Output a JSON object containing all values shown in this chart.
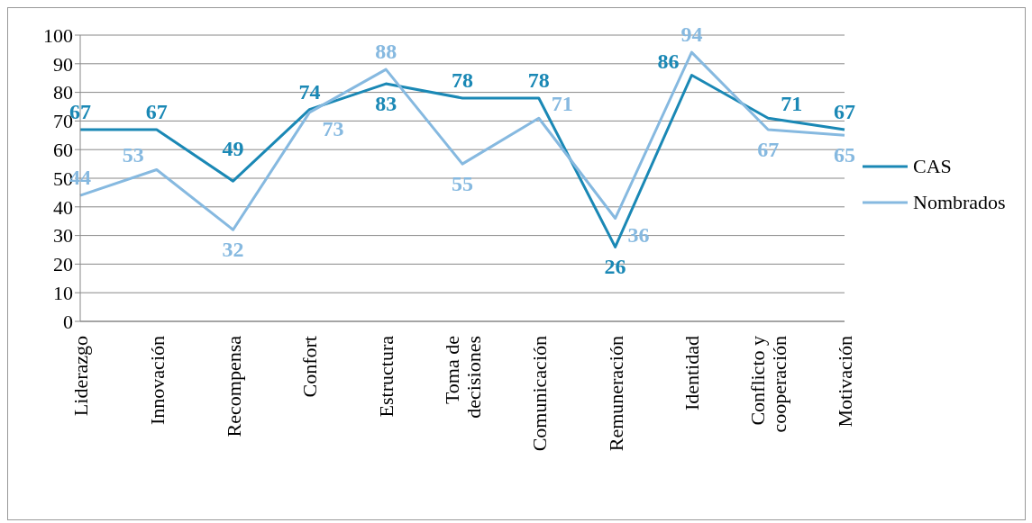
{
  "chart_data": {
    "type": "line",
    "categories": [
      "Liderazgo",
      "Innovación",
      "Recompensa",
      "Confort",
      "Estructura",
      "Toma de decisiones",
      "Comunicación",
      "Remuneración",
      "Identidad",
      "Conflicto y cooperación",
      "Motivación"
    ],
    "series": [
      {
        "name": "CAS",
        "color": "#1a88b5",
        "values": [
          67,
          67,
          49,
          74,
          83,
          78,
          78,
          26,
          86,
          71,
          67
        ]
      },
      {
        "name": "Nombrados",
        "color": "#86b9e0",
        "values": [
          44,
          53,
          32,
          73,
          88,
          55,
          71,
          36,
          94,
          67,
          65
        ]
      }
    ],
    "ylim": [
      0,
      100
    ],
    "yticks": [
      0,
      10,
      20,
      30,
      40,
      50,
      60,
      70,
      80,
      90,
      100
    ],
    "grid": "y",
    "legend": "right",
    "data_labels": true,
    "marker": "none",
    "line_style": "solid"
  }
}
